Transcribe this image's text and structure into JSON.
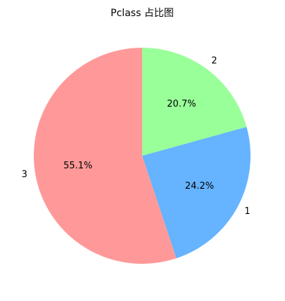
{
  "chart_data": {
    "type": "pie",
    "title": "Pclass 占比图",
    "categories": [
      "2",
      "1",
      "3"
    ],
    "values": [
      20.7,
      24.2,
      55.1
    ],
    "percent_labels": [
      "20.7%",
      "24.2%",
      "55.1%"
    ],
    "colors": [
      "#99ff99",
      "#66b3ff",
      "#ff9999"
    ],
    "start_angle_deg": 90,
    "direction": "clockwise",
    "legend": "none"
  }
}
